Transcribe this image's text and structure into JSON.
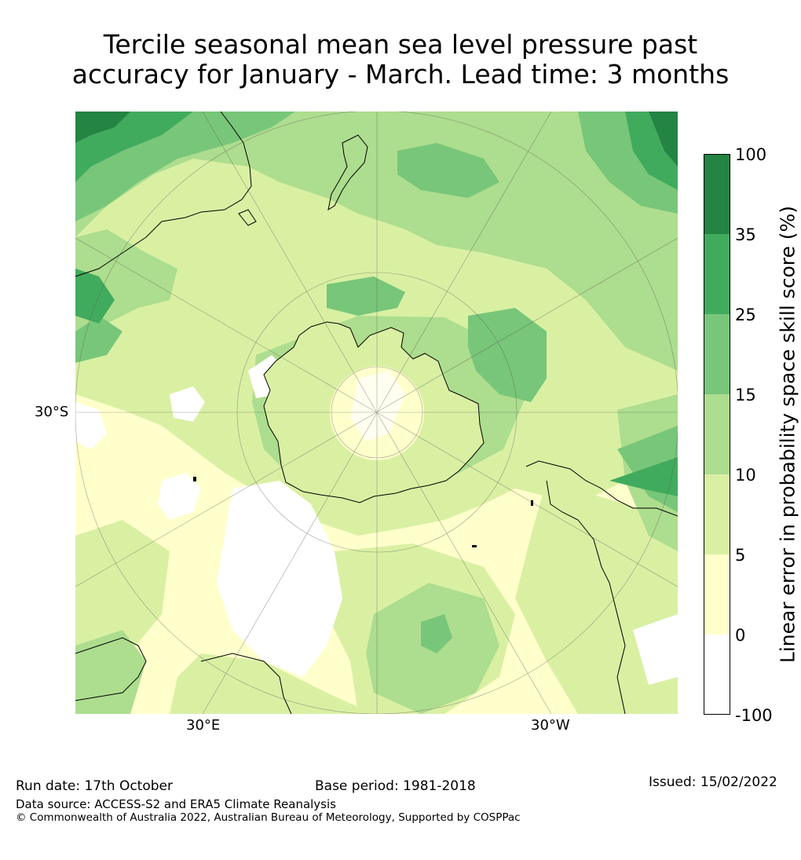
{
  "title_line1": "Tercile seasonal mean sea level pressure past",
  "title_line2": "accuracy for January - March. Lead time: 3 months",
  "map": {
    "lat_label": "30°S",
    "lon_labels": [
      "30°E",
      "30°W"
    ]
  },
  "colorbar": {
    "label": "Linear error in probability space skill score (%)",
    "ticks": [
      "100",
      "35",
      "25",
      "15",
      "10",
      "5",
      "0",
      "-100"
    ],
    "colors": [
      "#238443",
      "#41ab5d",
      "#78c679",
      "#addd8e",
      "#d9f0a3",
      "#ffffcc",
      "#ffffff"
    ]
  },
  "footer": {
    "run_date": "Run date: 17th October",
    "base_period": "Base period: 1981-2018",
    "issued": "Issued: 15/02/2022",
    "data_source": "Data source: ACCESS-S2 and ERA5 Climate Reanalysis",
    "copyright": "© Commonwealth of Australia 2022, Australian Bureau of Meteorology, Supported by COSPPac"
  }
}
